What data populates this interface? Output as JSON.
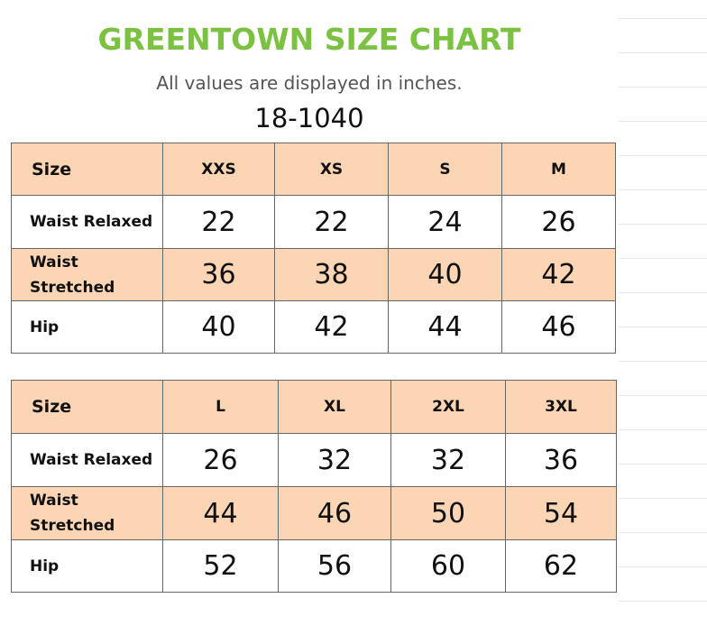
{
  "title": "GREENTOWN SIZE CHART",
  "subtitle": "All values are displayed in inches.",
  "product_code": "18-1040",
  "tables": [
    {
      "header_label": "Size",
      "sizes": [
        "XXS",
        "XS",
        "S",
        "M"
      ],
      "rows": [
        {
          "label": "Waist Relaxed",
          "values": [
            "22",
            "22",
            "24",
            "26"
          ]
        },
        {
          "label": "Waist Stretched",
          "values": [
            "36",
            "38",
            "40",
            "42"
          ]
        },
        {
          "label": "Hip",
          "values": [
            "40",
            "42",
            "44",
            "46"
          ]
        }
      ]
    },
    {
      "header_label": "Size",
      "sizes": [
        "L",
        "XL",
        "2XL",
        "3XL"
      ],
      "rows": [
        {
          "label": "Waist Relaxed",
          "values": [
            "26",
            "32",
            "32",
            "36"
          ]
        },
        {
          "label": "Waist Stretched",
          "values": [
            "44",
            "46",
            "50",
            "54"
          ]
        },
        {
          "label": "Hip",
          "values": [
            "52",
            "56",
            "60",
            "62"
          ]
        }
      ]
    }
  ],
  "colors": {
    "title": "#7cc242",
    "header_fill": "#fcd5b4",
    "border": "#666666"
  }
}
